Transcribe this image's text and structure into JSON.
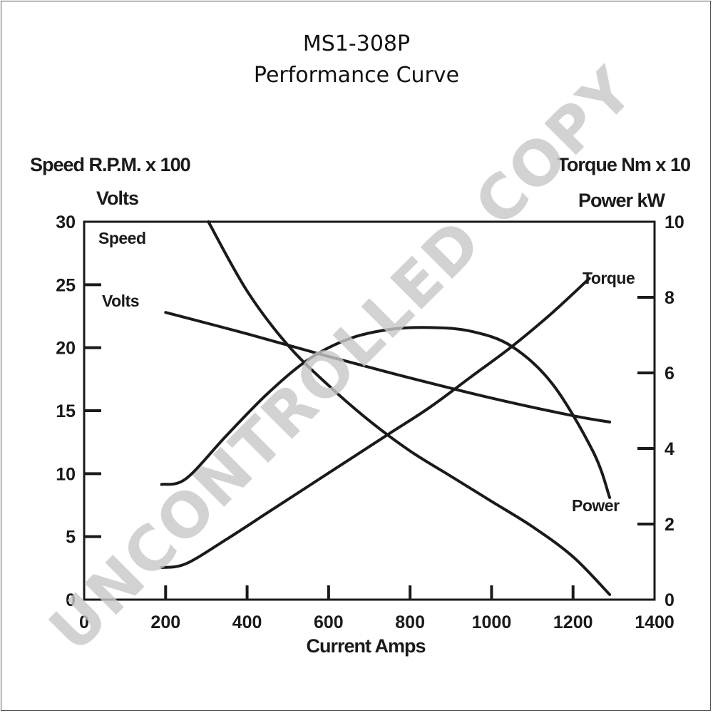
{
  "title": "MS1-308P",
  "subtitle": "Performance Curve",
  "watermark": "UNCONTROLLED COPY",
  "chart_data": {
    "type": "line",
    "xlabel": "Current Amps",
    "ylabel_left_line1": "Speed R.P.M. x 100",
    "ylabel_left_line2": "Volts",
    "ylabel_right_line1": "Torque Nm x 10",
    "ylabel_right_line2": "Power kW",
    "xlim": [
      0,
      1400
    ],
    "ylim_left": [
      0,
      30
    ],
    "ylim_right": [
      0,
      10
    ],
    "x_ticks": [
      "0",
      "200",
      "400",
      "600",
      "800",
      "1000",
      "1200",
      "1400"
    ],
    "x_tick_values": [
      0,
      200,
      400,
      600,
      800,
      1000,
      1200,
      1400
    ],
    "y_left_ticks": [
      "0",
      "5",
      "10",
      "15",
      "20",
      "25",
      "30"
    ],
    "y_left_tick_values": [
      0,
      5,
      10,
      15,
      20,
      25,
      30
    ],
    "y_right_ticks": [
      "0",
      "2",
      "4",
      "6",
      "8",
      "10"
    ],
    "y_right_tick_values": [
      0,
      2,
      4,
      6,
      8,
      10
    ],
    "series": [
      {
        "name": "Speed",
        "axis": "left",
        "x": [
          305,
          400,
          500,
          600,
          700,
          800,
          900,
          1000,
          1100,
          1200,
          1290
        ],
        "y": [
          30,
          24.5,
          20.2,
          17,
          14.2,
          11.8,
          9.8,
          7.8,
          5.8,
          3.4,
          0.4
        ]
      },
      {
        "name": "Volts",
        "axis": "left",
        "x": [
          200,
          400,
          600,
          800,
          1000,
          1200,
          1290
        ],
        "y": [
          22.8,
          21.1,
          19.3,
          17.6,
          16,
          14.6,
          14.1
        ]
      },
      {
        "name": "Torque",
        "axis": "right",
        "x": [
          190,
          250,
          350,
          450,
          550,
          650,
          750,
          850,
          950,
          1050,
          1150,
          1240
        ],
        "y": [
          0.85,
          0.95,
          1.6,
          2.3,
          3.0,
          3.7,
          4.4,
          5.1,
          5.9,
          6.7,
          7.6,
          8.5
        ]
      },
      {
        "name": "Power",
        "axis": "right",
        "x": [
          190,
          250,
          350,
          450,
          550,
          650,
          750,
          850,
          950,
          1050,
          1150,
          1250,
          1290
        ],
        "y": [
          3.05,
          3.2,
          4.35,
          5.45,
          6.35,
          6.9,
          7.15,
          7.2,
          7.1,
          6.7,
          5.7,
          3.9,
          2.7
        ]
      }
    ]
  }
}
